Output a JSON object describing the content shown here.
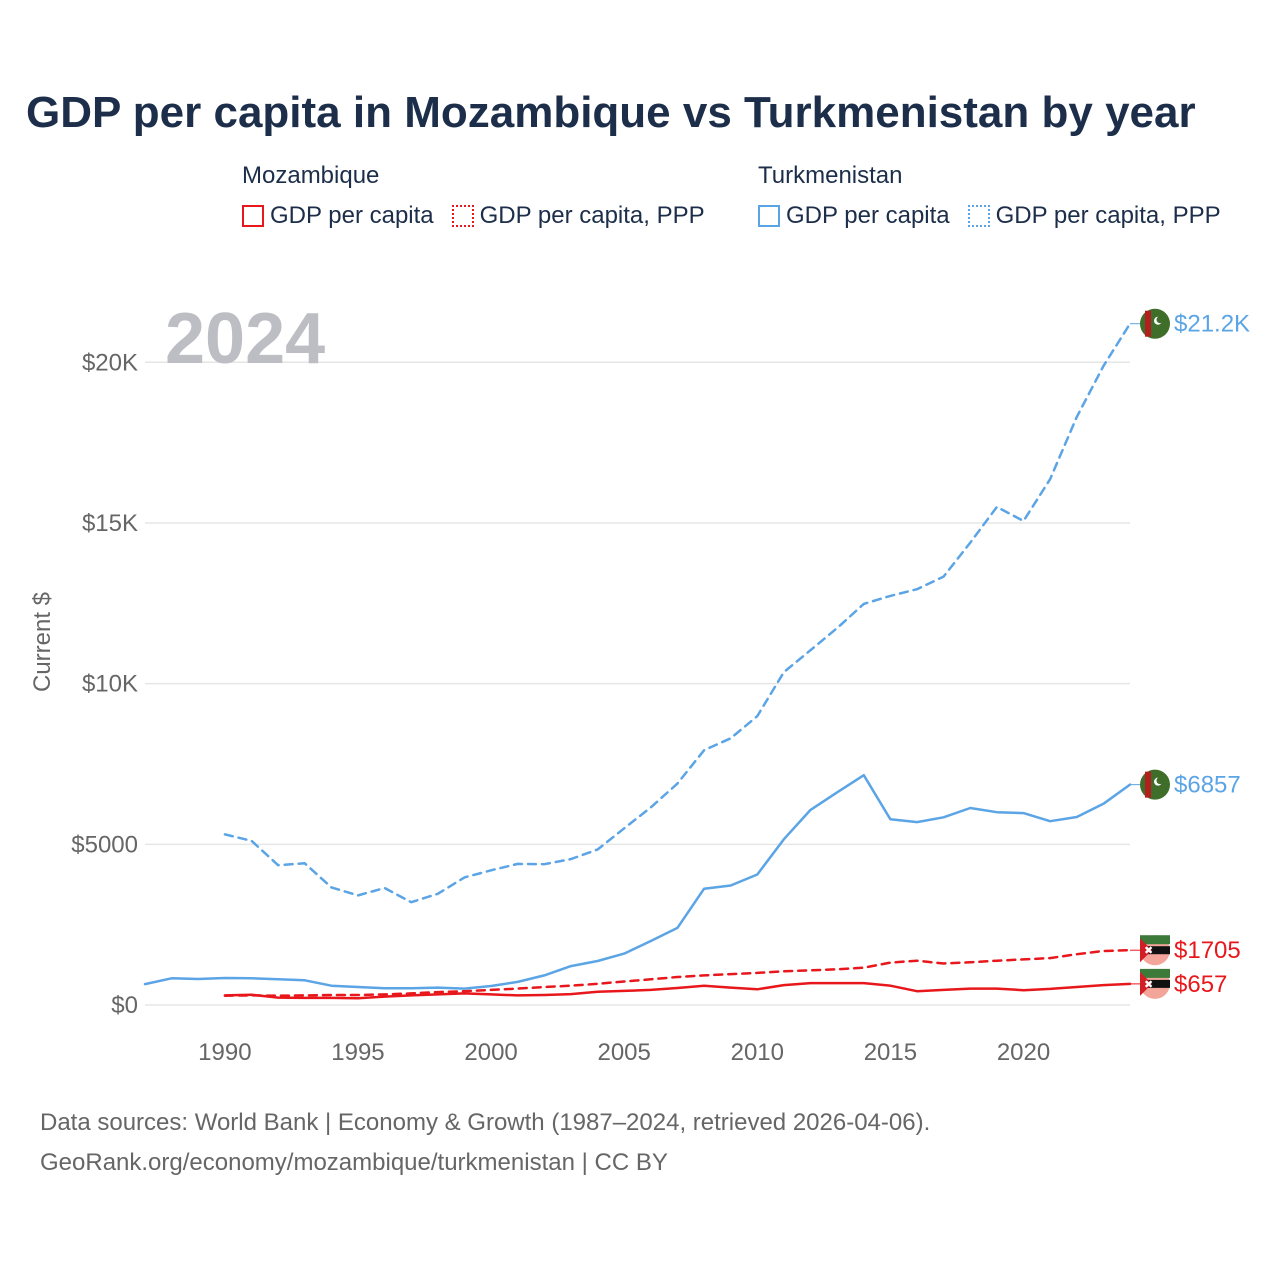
{
  "title": "GDP per capita in Mozambique vs Turkmenistan by year",
  "legend": {
    "groups": [
      {
        "country": "Mozambique",
        "color": "#e8171b",
        "items": [
          {
            "label": "GDP per capita",
            "style": "solid"
          },
          {
            "label": "GDP per capita, PPP",
            "style": "dotted"
          }
        ]
      },
      {
        "country": "Turkmenistan",
        "color": "#5ba4e5",
        "items": [
          {
            "label": "GDP per capita",
            "style": "solid"
          },
          {
            "label": "GDP per capita, PPP",
            "style": "dotted"
          }
        ]
      }
    ]
  },
  "year_watermark": "2024",
  "footer": {
    "line1": "Data sources: World Bank | Economy & Growth (1987–2024, retrieved 2026-04-06).",
    "line2": "GeoRank.org/economy/mozambique/turkmenistan | CC BY"
  },
  "chart_data": {
    "type": "line",
    "title": "GDP per capita in Mozambique vs Turkmenistan by year",
    "xlabel": "",
    "ylabel": "Current $",
    "xlim": [
      1987,
      2024
    ],
    "ylim": [
      0,
      22000
    ],
    "x_ticks": [
      1990,
      1995,
      2000,
      2005,
      2010,
      2015,
      2020
    ],
    "x_tick_labels": [
      "1990",
      "1995",
      "2000",
      "2005",
      "2010",
      "2015",
      "2020"
    ],
    "y_ticks": [
      0,
      5000,
      10000,
      15000,
      20000
    ],
    "y_tick_labels": [
      "$0",
      "$5000",
      "$10K",
      "$15K",
      "$20K"
    ],
    "grid": true,
    "series": [
      {
        "name": "Mozambique GDP per capita",
        "country": "Mozambique",
        "color": "#e8171b",
        "dash": "solid",
        "end_label": "$657",
        "x": [
          1990,
          1991,
          1992,
          1993,
          1994,
          1995,
          1996,
          1997,
          1998,
          1999,
          2000,
          2001,
          2002,
          2003,
          2004,
          2005,
          2006,
          2007,
          2008,
          2009,
          2010,
          2011,
          2012,
          2013,
          2014,
          2015,
          2016,
          2017,
          2018,
          2019,
          2020,
          2021,
          2022,
          2023,
          2024
        ],
        "values": [
          300,
          320,
          230,
          220,
          220,
          210,
          260,
          300,
          330,
          360,
          330,
          300,
          310,
          340,
          410,
          440,
          470,
          530,
          600,
          540,
          490,
          620,
          680,
          680,
          680,
          600,
          430,
          470,
          510,
          510,
          460,
          500,
          560,
          620,
          657
        ]
      },
      {
        "name": "Mozambique GDP per capita, PPP",
        "country": "Mozambique",
        "color": "#e8171b",
        "dash": "dotted",
        "end_label": "$1705",
        "x": [
          1990,
          1991,
          1992,
          1993,
          1994,
          1995,
          1996,
          1997,
          1998,
          1999,
          2000,
          2001,
          2002,
          2003,
          2004,
          2005,
          2006,
          2007,
          2008,
          2009,
          2010,
          2011,
          2012,
          2013,
          2014,
          2015,
          2016,
          2017,
          2018,
          2019,
          2020,
          2021,
          2022,
          2023,
          2024
        ],
        "values": [
          290,
          300,
          290,
          300,
          310,
          310,
          330,
          360,
          400,
          430,
          470,
          510,
          560,
          600,
          660,
          730,
          800,
          870,
          920,
          960,
          1000,
          1050,
          1080,
          1110,
          1160,
          1320,
          1380,
          1290,
          1330,
          1380,
          1420,
          1460,
          1580,
          1680,
          1705
        ]
      },
      {
        "name": "Turkmenistan GDP per capita",
        "country": "Turkmenistan",
        "color": "#5ba4e5",
        "dash": "solid",
        "end_label": "$6857",
        "x": [
          1987,
          1988,
          1989,
          1990,
          1991,
          1992,
          1993,
          1994,
          1995,
          1996,
          1997,
          1998,
          1999,
          2000,
          2001,
          2002,
          2003,
          2004,
          2005,
          2006,
          2007,
          2008,
          2009,
          2010,
          2011,
          2012,
          2013,
          2014,
          2015,
          2016,
          2017,
          2018,
          2019,
          2020,
          2021,
          2022,
          2023,
          2024
        ],
        "values": [
          650,
          830,
          810,
          840,
          830,
          800,
          770,
          600,
          560,
          520,
          520,
          540,
          510,
          590,
          720,
          920,
          1210,
          1370,
          1600,
          1990,
          2400,
          3620,
          3720,
          4060,
          5160,
          6070,
          6620,
          7150,
          5780,
          5690,
          5840,
          6130,
          6000,
          5970,
          5720,
          5850,
          6260,
          6857
        ]
      },
      {
        "name": "Turkmenistan GDP per capita, PPP",
        "country": "Turkmenistan",
        "color": "#5ba4e5",
        "dash": "dotted",
        "end_label": "$21.2K",
        "x": [
          1990,
          1991,
          1992,
          1993,
          1994,
          1995,
          1996,
          1997,
          1998,
          1999,
          2000,
          2001,
          2002,
          2003,
          2004,
          2005,
          2006,
          2007,
          2008,
          2009,
          2010,
          2011,
          2012,
          2013,
          2014,
          2015,
          2016,
          2017,
          2018,
          2019,
          2020,
          2021,
          2022,
          2023,
          2024
        ],
        "values": [
          5310,
          5110,
          4350,
          4410,
          3660,
          3410,
          3640,
          3200,
          3460,
          3970,
          4190,
          4390,
          4380,
          4540,
          4840,
          5500,
          6150,
          6890,
          7930,
          8300,
          8990,
          10360,
          11040,
          11730,
          12480,
          12730,
          12940,
          13330,
          14390,
          15500,
          15060,
          16360,
          18300,
          19880,
          21200
        ]
      }
    ]
  }
}
